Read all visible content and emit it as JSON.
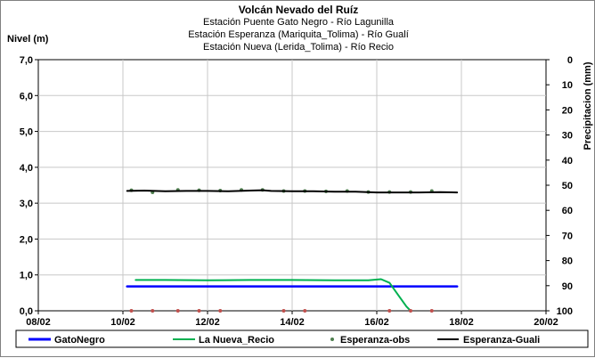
{
  "chart_data": {
    "type": "line",
    "title": "Volcán Nevado del Ruíz",
    "subtitles": [
      "Estación Puente Gato Negro - Río Lagunilla",
      "Estación Esperanza (Mariquita_Tolima) - Río Gualí",
      "Estación Nueva (Lerida_Tolima) - Río Recio"
    ],
    "ylabel": "Nivel (m)",
    "y2label": "Precipitacion (mm)",
    "xlim": [
      8,
      20
    ],
    "ylim": [
      0,
      7
    ],
    "y2lim": [
      0,
      100
    ],
    "y2_inverted": true,
    "x_ticks": [
      "08/02",
      "10/02",
      "12/02",
      "14/02",
      "16/02",
      "18/02",
      "20/02"
    ],
    "y_ticks": [
      "0,0",
      "1,0",
      "2,0",
      "3,0",
      "4,0",
      "5,0",
      "6,0",
      "7,0"
    ],
    "y2_ticks": [
      "0",
      "10",
      "20",
      "30",
      "40",
      "50",
      "60",
      "70",
      "80",
      "90",
      "100"
    ],
    "grid": true,
    "legend_position": "bottom",
    "series": [
      {
        "name": "GatoNegro",
        "color": "#0000ff",
        "style": "line",
        "x": [
          10.1,
          11.0,
          12.0,
          13.0,
          14.0,
          15.0,
          16.0,
          17.0,
          17.9
        ],
        "y": [
          0.68,
          0.68,
          0.68,
          0.68,
          0.68,
          0.68,
          0.68,
          0.68,
          0.68
        ]
      },
      {
        "name": "La Nueva_Recio",
        "color": "#00b050",
        "style": "line",
        "x": [
          10.3,
          11.0,
          12.0,
          13.0,
          14.0,
          15.0,
          15.8,
          16.1,
          16.3,
          16.5,
          16.7,
          16.8
        ],
        "y": [
          0.86,
          0.86,
          0.85,
          0.86,
          0.86,
          0.85,
          0.85,
          0.88,
          0.78,
          0.45,
          0.12,
          0.0
        ]
      },
      {
        "name": "Esperanza-obs",
        "color": "#4f7f4f",
        "style": "markers",
        "x": [
          10.2,
          10.7,
          11.3,
          11.8,
          12.3,
          12.8,
          13.3,
          13.8,
          14.3,
          14.8,
          15.3,
          15.8,
          16.3,
          16.8,
          17.3
        ],
        "y": [
          3.36,
          3.3,
          3.37,
          3.36,
          3.35,
          3.37,
          3.37,
          3.34,
          3.34,
          3.33,
          3.34,
          3.31,
          3.31,
          3.31,
          3.34
        ]
      },
      {
        "name": "Esperanza-Guali",
        "color": "#000000",
        "style": "line",
        "x": [
          10.1,
          10.5,
          11.0,
          11.5,
          12.0,
          12.5,
          13.0,
          13.3,
          13.5,
          14.0,
          14.5,
          15.0,
          15.5,
          16.0,
          16.5,
          17.0,
          17.5,
          17.9
        ],
        "y": [
          3.34,
          3.35,
          3.33,
          3.34,
          3.34,
          3.33,
          3.35,
          3.36,
          3.34,
          3.33,
          3.33,
          3.32,
          3.32,
          3.3,
          3.3,
          3.3,
          3.31,
          3.3
        ]
      },
      {
        "name": "Precipitación",
        "color": "#c0504d",
        "style": "markers-secondary",
        "x": [
          10.2,
          10.7,
          11.3,
          11.8,
          12.3,
          13.8,
          14.3,
          16.3,
          16.8,
          17.3
        ],
        "y": [
          100,
          100,
          100,
          100,
          100,
          100,
          100,
          100,
          100,
          100
        ]
      }
    ],
    "legend": [
      "GatoNegro",
      "La Nueva_Recio",
      "Esperanza-obs",
      "Esperanza-Guali"
    ]
  }
}
